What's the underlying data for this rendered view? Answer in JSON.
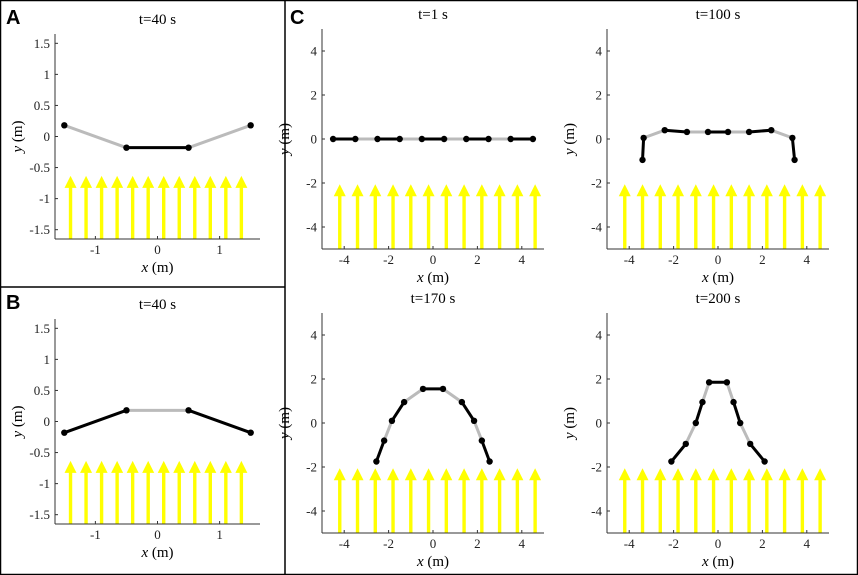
{
  "figure": {
    "colors": {
      "arrow": "#ffff00",
      "segment_dark": "#000000",
      "segment_light": "#bbbbbb",
      "frame": "#000000"
    },
    "panel_letters": {
      "A": "A",
      "B": "B",
      "C": "C"
    }
  },
  "chart_data": [
    {
      "id": "A",
      "type": "line",
      "title": "t=40 s",
      "xlabel_var": "x",
      "xlabel_unit": "(m)",
      "ylabel_var": "y",
      "ylabel_unit": "(m)",
      "xlim": [
        -1.65,
        1.65
      ],
      "ylim": [
        -1.65,
        1.65
      ],
      "xticks": [
        -1,
        0,
        1
      ],
      "xtick_labels": [
        "-1",
        "0",
        "1"
      ],
      "yticks": [
        -1.5,
        -1,
        -0.5,
        0,
        0.5,
        1,
        1.5
      ],
      "ytick_labels": [
        "-1.5",
        "-1",
        "-0.5",
        "0",
        "0.5",
        "1",
        "1.5"
      ],
      "arrows": {
        "x": [
          -1.4,
          -1.15,
          -0.9,
          -0.65,
          -0.4,
          -0.15,
          0.1,
          0.35,
          0.6,
          0.85,
          1.1,
          1.35
        ],
        "y_from": -1.65,
        "y_to": -0.65
      },
      "points": [
        [
          -1.5,
          0.18
        ],
        [
          -0.5,
          -0.18
        ],
        [
          0.5,
          -0.18
        ],
        [
          1.5,
          0.18
        ]
      ],
      "segment_styles": [
        "light",
        "dark",
        "light"
      ]
    },
    {
      "id": "B",
      "type": "line",
      "title": "t=40 s",
      "xlabel_var": "x",
      "xlabel_unit": "(m)",
      "ylabel_var": "y",
      "ylabel_unit": "(m)",
      "xlim": [
        -1.65,
        1.65
      ],
      "ylim": [
        -1.65,
        1.65
      ],
      "xticks": [
        -1,
        0,
        1
      ],
      "xtick_labels": [
        "-1",
        "0",
        "1"
      ],
      "yticks": [
        -1.5,
        -1,
        -0.5,
        0,
        0.5,
        1,
        1.5
      ],
      "ytick_labels": [
        "-1.5",
        "-1",
        "-0.5",
        "0",
        "0.5",
        "1",
        "1.5"
      ],
      "arrows": {
        "x": [
          -1.4,
          -1.15,
          -0.9,
          -0.65,
          -0.4,
          -0.15,
          0.1,
          0.35,
          0.6,
          0.85,
          1.1,
          1.35
        ],
        "y_from": -1.65,
        "y_to": -0.65
      },
      "points": [
        [
          -1.5,
          -0.18
        ],
        [
          -0.5,
          0.18
        ],
        [
          0.5,
          0.18
        ],
        [
          1.5,
          -0.18
        ]
      ],
      "segment_styles": [
        "dark",
        "light",
        "dark"
      ]
    },
    {
      "id": "C1",
      "type": "line",
      "title": "t=1 s",
      "xlabel_var": "x",
      "xlabel_unit": "(m)",
      "ylabel_var": "y",
      "ylabel_unit": "(m)",
      "xlim": [
        -5,
        5
      ],
      "ylim": [
        -5,
        5
      ],
      "xticks": [
        -4,
        -2,
        0,
        2,
        4
      ],
      "xtick_labels": [
        "-4",
        "-2",
        "0",
        "2",
        "4"
      ],
      "yticks": [
        -4,
        -2,
        0,
        2,
        4
      ],
      "ytick_labels": [
        "-4",
        "-2",
        "0",
        "2",
        "4"
      ],
      "arrows": {
        "x": [
          -4.2,
          -3.4,
          -2.6,
          -1.8,
          -1.0,
          -0.2,
          0.6,
          1.4,
          2.2,
          3.0,
          3.8,
          4.6
        ],
        "y_from": -5,
        "y_to": -2.1
      },
      "points": [
        [
          -4.5,
          0
        ],
        [
          -3.5,
          0
        ],
        [
          -2.5,
          0
        ],
        [
          -1.5,
          0
        ],
        [
          -0.5,
          0
        ],
        [
          0.5,
          0
        ],
        [
          1.5,
          0
        ],
        [
          2.5,
          0
        ],
        [
          3.5,
          0
        ],
        [
          4.5,
          0
        ]
      ],
      "segment_styles": [
        "dark",
        "light",
        "dark",
        "light",
        "dark",
        "light",
        "dark",
        "light",
        "dark"
      ]
    },
    {
      "id": "C2",
      "type": "line",
      "title": "t=100 s",
      "xlabel_var": "x",
      "xlabel_unit": "(m)",
      "ylabel_var": "y",
      "ylabel_unit": "(m)",
      "xlim": [
        -5,
        5
      ],
      "ylim": [
        -5,
        5
      ],
      "xticks": [
        -4,
        -2,
        0,
        2,
        4
      ],
      "xtick_labels": [
        "-4",
        "-2",
        "0",
        "2",
        "4"
      ],
      "yticks": [
        -4,
        -2,
        0,
        2,
        4
      ],
      "ytick_labels": [
        "-4",
        "-2",
        "0",
        "2",
        "4"
      ],
      "arrows": {
        "x": [
          -4.2,
          -3.4,
          -2.6,
          -1.8,
          -1.0,
          -0.2,
          0.6,
          1.4,
          2.2,
          3.0,
          3.8,
          4.6
        ],
        "y_from": -5,
        "y_to": -2.1
      },
      "points": [
        [
          -3.4,
          -0.95
        ],
        [
          -3.35,
          0.05
        ],
        [
          -2.4,
          0.4
        ],
        [
          -1.4,
          0.32
        ],
        [
          -0.45,
          0.32
        ],
        [
          0.45,
          0.32
        ],
        [
          1.4,
          0.32
        ],
        [
          2.4,
          0.4
        ],
        [
          3.35,
          0.05
        ],
        [
          3.45,
          -0.95
        ]
      ],
      "segment_styles": [
        "dark",
        "light",
        "dark",
        "light",
        "dark",
        "light",
        "dark",
        "light",
        "dark"
      ]
    },
    {
      "id": "C3",
      "type": "line",
      "title": "t=170 s",
      "xlabel_var": "x",
      "xlabel_unit": "(m)",
      "ylabel_var": "y",
      "ylabel_unit": "(m)",
      "xlim": [
        -5,
        5
      ],
      "ylim": [
        -5,
        5
      ],
      "xticks": [
        -4,
        -2,
        0,
        2,
        4
      ],
      "xtick_labels": [
        "-4",
        "-2",
        "0",
        "2",
        "4"
      ],
      "yticks": [
        -4,
        -2,
        0,
        2,
        4
      ],
      "ytick_labels": [
        "-4",
        "-2",
        "0",
        "2",
        "4"
      ],
      "arrows": {
        "x": [
          -4.2,
          -3.4,
          -2.6,
          -1.8,
          -1.0,
          -0.2,
          0.6,
          1.4,
          2.2,
          3.0,
          3.8,
          4.6
        ],
        "y_from": -5,
        "y_to": -2.1
      },
      "points": [
        [
          -2.55,
          -1.75
        ],
        [
          -2.2,
          -0.8
        ],
        [
          -1.85,
          0.1
        ],
        [
          -1.3,
          0.95
        ],
        [
          -0.45,
          1.55
        ],
        [
          0.45,
          1.55
        ],
        [
          1.3,
          0.95
        ],
        [
          1.85,
          0.1
        ],
        [
          2.2,
          -0.8
        ],
        [
          2.55,
          -1.75
        ]
      ],
      "segment_styles": [
        "dark",
        "light",
        "dark",
        "light",
        "dark",
        "light",
        "dark",
        "light",
        "dark"
      ]
    },
    {
      "id": "C4",
      "type": "line",
      "title": "t=200 s",
      "xlabel_var": "x",
      "xlabel_unit": "(m)",
      "ylabel_var": "y",
      "ylabel_unit": "(m)",
      "xlim": [
        -5,
        5
      ],
      "ylim": [
        -5,
        5
      ],
      "xticks": [
        -4,
        -2,
        0,
        2,
        4
      ],
      "xtick_labels": [
        "-4",
        "-2",
        "0",
        "2",
        "4"
      ],
      "yticks": [
        -4,
        -2,
        0,
        2,
        4
      ],
      "ytick_labels": [
        "-4",
        "-2",
        "0",
        "2",
        "4"
      ],
      "arrows": {
        "x": [
          -4.2,
          -3.4,
          -2.6,
          -1.8,
          -1.0,
          -0.2,
          0.6,
          1.4,
          2.2,
          3.0,
          3.8,
          4.6
        ],
        "y_from": -5,
        "y_to": -2.1
      },
      "points": [
        [
          -2.1,
          -1.75
        ],
        [
          -1.45,
          -0.95
        ],
        [
          -1.0,
          0.0
        ],
        [
          -0.7,
          0.95
        ],
        [
          -0.4,
          1.85
        ],
        [
          0.4,
          1.85
        ],
        [
          0.7,
          0.95
        ],
        [
          1.0,
          0.0
        ],
        [
          1.45,
          -0.95
        ],
        [
          2.1,
          -1.75
        ]
      ],
      "segment_styles": [
        "dark",
        "light",
        "dark",
        "light",
        "dark",
        "light",
        "dark",
        "light",
        "dark"
      ]
    }
  ]
}
